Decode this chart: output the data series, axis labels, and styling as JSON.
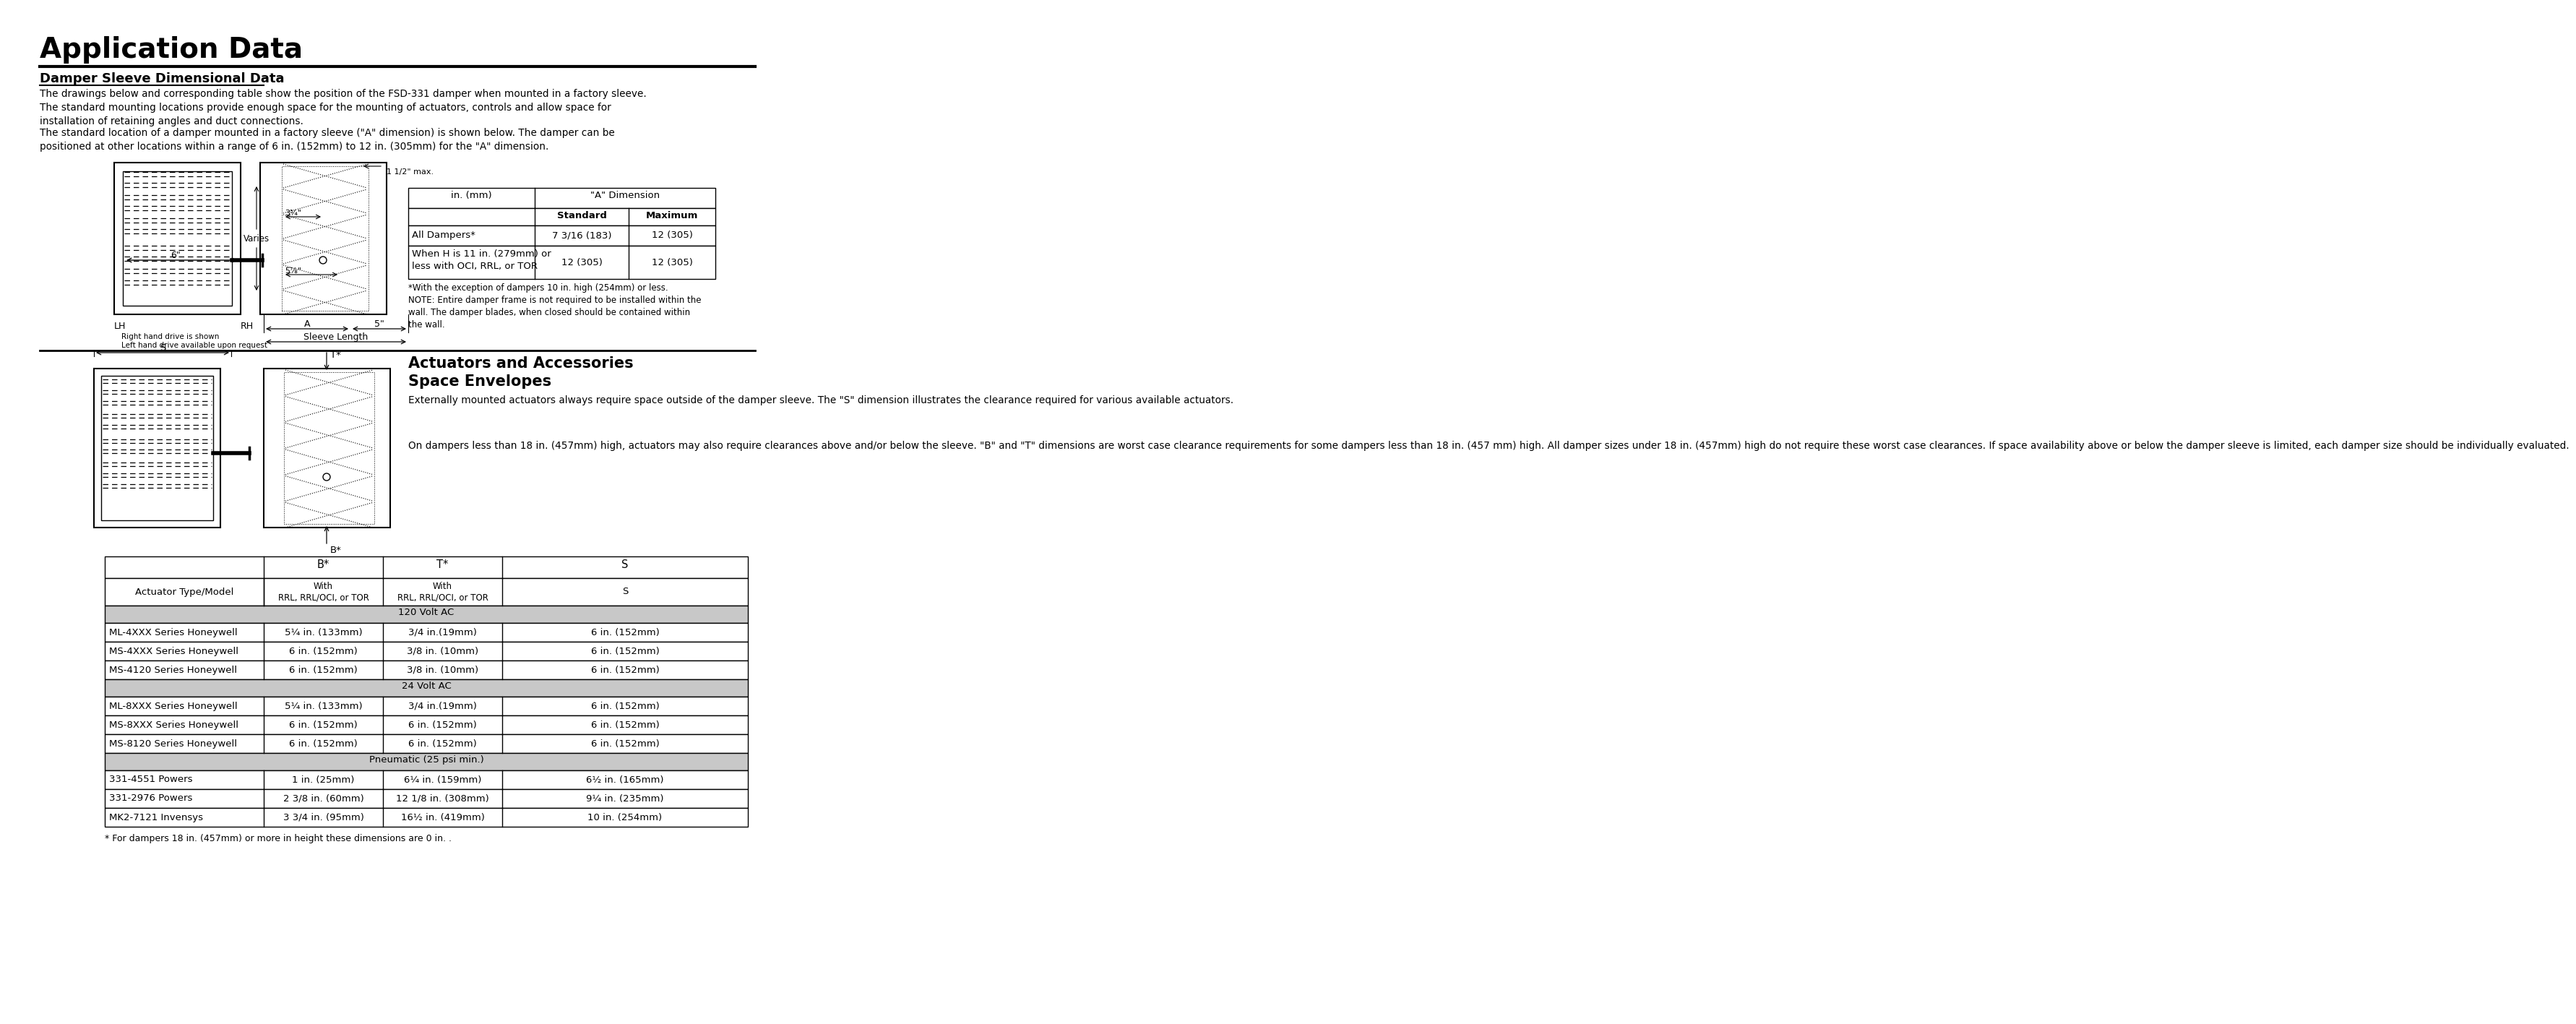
{
  "title": "Application Data",
  "section1_title": "Damper Sleeve Dimensional Data",
  "section1_para1": "The drawings below and corresponding table show the position of the FSD-331 damper when mounted in a factory sleeve.\nThe standard mounting locations provide enough space for the mounting of actuators, controls and allow space for\ninstallation of retaining angles and duct connections.",
  "section1_para2": "The standard location of a damper mounted in a factory sleeve (\"A\" dimension) is shown below. The damper can be\npositioned at other locations within a range of 6 in. (152mm) to 12 in. (305mm) for the \"A\" dimension.",
  "section2_title": "Actuators and Accessories",
  "section2_subtitle": "Space Envelopes",
  "section2_para1": "Externally mounted actuators always require space outside of the damper sleeve. The \"S\" dimension illustrates the clearance required for various available actuators.",
  "section2_para2": "On dampers less than 18 in. (457mm) high, actuators may also require clearances above and/or below the sleeve. \"B\" and \"T\" dimensions are worst case clearance requirements for some dampers less than 18 in. (457 mm) high. All damper sizes under 18 in. (457mm) high do not require these worst case clearances. If space availability above or below the damper sleeve is limited, each damper size should be individually evaluated.",
  "dim_table_note": "*With the exception of dampers 10 in. high (254mm) or less.\nNOTE: Entire damper frame is not required to be installed within the\nwall. The damper blades, when closed should be contained within\nthe wall.",
  "dim_table_rows": [
    [
      "All Dampers*",
      "7 3/16 (183)",
      "12 (305)"
    ],
    [
      "When H is 11 in. (279mm) or\nless with OCI, RRL, or TOR",
      "12 (305)",
      "12 (305)"
    ]
  ],
  "act_table_sections": [
    {
      "section_label": "120 Volt AC",
      "rows": [
        [
          "ML-4XXX Series Honeywell",
          "5¼ in. (133mm)",
          "3/4 in.(19mm)",
          "6 in. (152mm)"
        ],
        [
          "MS-4XXX Series Honeywell",
          "6 in. (152mm)",
          "3/8 in. (10mm)",
          "6 in. (152mm)"
        ],
        [
          "MS-4120 Series Honeywell",
          "6 in. (152mm)",
          "3/8 in. (10mm)",
          "6 in. (152mm)"
        ]
      ]
    },
    {
      "section_label": "24 Volt AC",
      "rows": [
        [
          "ML-8XXX Series Honeywell",
          "5¼ in. (133mm)",
          "3/4 in.(19mm)",
          "6 in. (152mm)"
        ],
        [
          "MS-8XXX Series Honeywell",
          "6 in. (152mm)",
          "6 in. (152mm)",
          "6 in. (152mm)"
        ],
        [
          "MS-8120 Series Honeywell",
          "6 in. (152mm)",
          "6 in. (152mm)",
          "6 in. (152mm)"
        ]
      ]
    },
    {
      "section_label": "Pneumatic (25 psi min.)",
      "rows": [
        [
          "331-4551 Powers",
          "1 in. (25mm)",
          "6¼ in. (159mm)",
          "6½ in. (165mm)"
        ],
        [
          "331-2976 Powers",
          "2 3/8 in. (60mm)",
          "12 1/8 in. (308mm)",
          "9¼ in. (235mm)"
        ],
        [
          "MK2-7121 Invensys",
          "3 3/4 in. (95mm)",
          "16½ in. (419mm)",
          "10 in. (254mm)"
        ]
      ]
    }
  ],
  "act_table_footnote": "* For dampers 18 in. (457mm) or more in height these dimensions are 0 in. .",
  "bg_color": "#ffffff",
  "text_color": "#000000",
  "gray_bg": "#c8c8c8"
}
